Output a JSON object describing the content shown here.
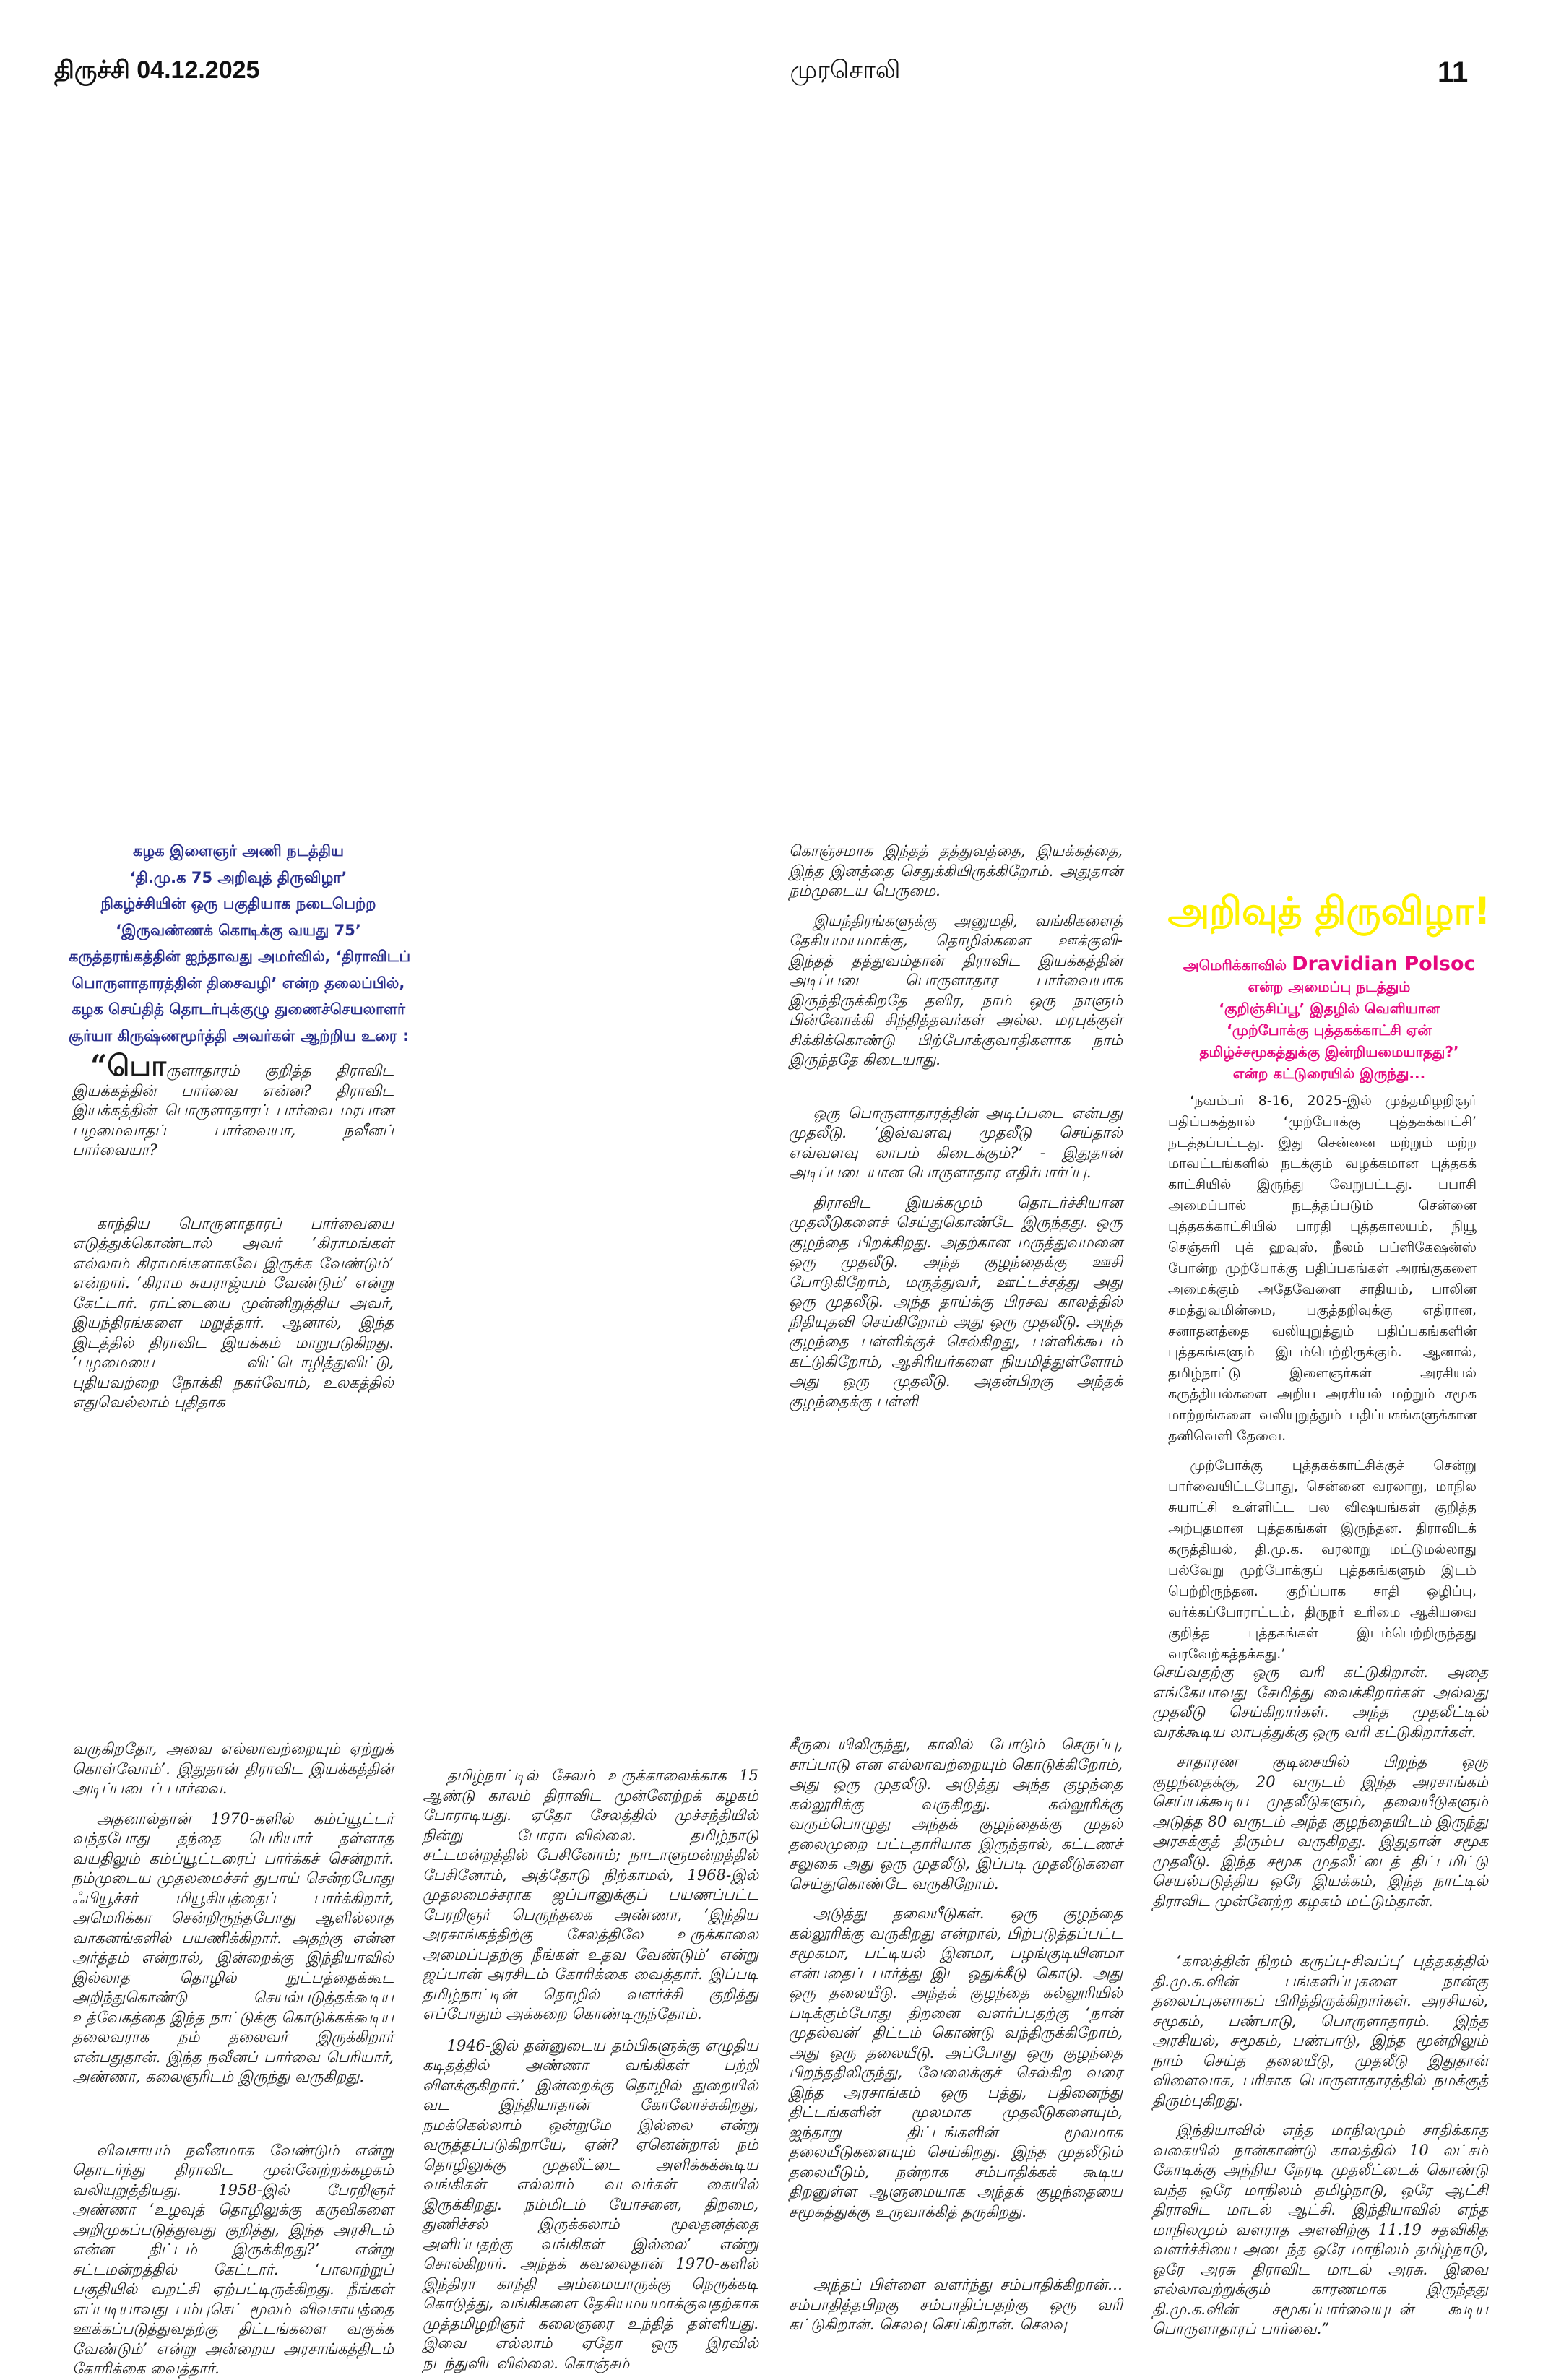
{
  "header": {
    "location_date": "திருச்சி 04.12.2025",
    "paper_name": "முரசொலி",
    "page_number": "11"
  },
  "intro": {
    "lines": [
      "கழக இளைஞர் அணி நடத்திய",
      "‘தி.மு.க 75 அறிவுத் திருவிழா’",
      "நிகழ்ச்சியின் ஒரு பகுதியாக நடைபெற்ற",
      "‘இருவண்ணக் கொடிக்கு வயது 75’",
      "கருத்தரங்கத்தின் ஐந்தாவது அமர்வில், ‘திராவிடப்",
      "பொருளாதாரத்தின் திசைவழி’ என்ற தலைப்பில்,",
      "கழக செய்தித் தொடர்புக்குழு துணைச்செயலாளர்",
      "சூர்யா கிருஷ்ணமூர்த்தி அவர்கள் ஆற்றிய உரை :"
    ]
  },
  "column1_top": {
    "drop_cap": "“பொ",
    "p1_rest": "ருளாதாரம் குறித்த திராவிட இயக்கத்தின் பார்வை என்ன? திராவிட இயக்கத்தின் பொருளாதாரப் பார்வை மரபான பழமைவாதப் பார்வையா, நவீனப் பார்வையா?",
    "p2": "காந்திய பொருளாதாரப் பார்வையை எடுத்துக்கொண்டால் அவர் ‘கிராமங்கள் எல்லாம் கிராமங்களாகவே இருக்க வேண்டும்’ என்றார். ‘கிராம சுயராஜ்யம் வேண்டும்’ என்று கேட்டார். ராட்டையை முன்னிறுத்திய அவர், இயந்திரங்களை மறுத்தார். ஆனால், இந்த இடத்தில் திராவிட இயக்கம் மாறுபடுகிறது. ‘பழமையை விட்டொழித்துவிட்டு, புதியவற்றை நோக்கி நகர்வோம், உலகத்தில் எதுவெல்லாம் புதிதாக"
  },
  "column3_top": {
    "paragraphs": [
      "கொஞ்சமாக இந்தத் தத்துவத்தை, இயக்கத்தை, இந்த இனத்தை செதுக்கியிருக்கிறோம். அதுதான் நம்முடைய பெருமை.",
      "இயந்திரங்களுக்கு அனுமதி, வங்கிகளைத் தேசியமயமாக்கு, தொழில்களை ஊக்குவி- இந்தத் தத்துவம்தான் திராவிட இயக்கத்தின் அடிப்படை பொருளாதார பார்வையாக இருந்திருக்கிறதே தவிர, நாம் ஒரு நாளும் பின்னோக்கி சிந்தித்தவர்கள் அல்ல. மரபுக்குள் சிக்கிக்கொண்டு பிற்போக்குவாதிகளாக நாம் இருந்ததே கிடையாது.",
      "ஒரு பொருளாதாரத்தின் அடிப்படை என்பது முதலீடு. ‘இவ்வளவு முதலீடு செய்தால் எவ்வளவு லாபம் கிடைக்கும்?’ - இதுதான் அடிப்படையான பொருளாதார எதிர்பார்ப்பு.",
      "திராவிட இயக்கமும் தொடர்ச்சியான முதலீடுகளைச் செய்துகொண்டே இருந்தது. ஒரு குழந்தை பிறக்கிறது. அதற்கான மருத்துவமனை ஒரு முதலீடு. அந்த குழந்தைக்கு ஊசி போடுகிறோம், மருத்துவர், ஊட்டச்சத்து அது ஒரு முதலீடு. அந்த தாய்க்கு பிரசவ காலத்தில் நிதியுதவி செய்கிறோம் அது ஒரு முதலீடு. அந்த குழந்தை பள்ளிக்குச் செல்கிறது, பள்ளிக்கூடம் கட்டுகிறோம், ஆசிரியர்களை நியமித்துள்ளோம் அது ஒரு முதலீடு. அதன்பிறகு அந்தக் குழந்தைக்கு பள்ளி"
    ]
  },
  "sidebar_box": {
    "title": "அறிவுத் திருவிழா!",
    "title_color": "#fff200",
    "subtitle_color": "#e5087f",
    "subtitle_prefix": "அமெரிக்காவில்",
    "subtitle_english": "Dravidian Polsoc",
    "subtitle_lines": [
      "என்ற அமைப்பு நடத்தும்",
      "‘குறிஞ்சிப்பூ’ இதழில் வெளியான",
      "‘முற்போக்கு புத்தகக்காட்சி ஏன்",
      "தமிழ்ச்சமூகத்துக்கு இன்றியமையாதது?’",
      "என்ற கட்டுரையில் இருந்து..."
    ],
    "paragraphs": [
      "‘நவம்பர் 8-16, 2025-இல் முத்தமிழறிஞர் பதிப்பகத்தால் ‘முற்போக்கு புத்தகக்காட்சி’ நடத்தப்பட்டது. இது சென்னை மற்றும் மற்ற மாவட்டங்களில் நடக்கும் வழக்கமான புத்தகக் காட்சியில் இருந்து வேறுபட்டது. பபாசி அமைப்பால் நடத்தப்படும் சென்னை புத்தகக்காட்சியில் பாரதி புத்தகாலயம், நியூ செஞ்சுரி புக் ஹவுஸ், நீலம் பப்ளிகேஷன்ஸ் போன்ற முற்போக்கு பதிப்பகங்கள் அரங்குகளை அமைக்கும் அதேவேளை சாதியம், பாலின சமத்துவமின்மை, பகுத்தறிவுக்கு எதிரான, சனாதனத்தை வலியுறுத்தும் பதிப்பகங்களின் புத்தகங்களும் இடம்பெற்றிருக்கும். ஆனால், தமிழ்நாட்டு இளைஞர்கள் அரசியல் கருத்தியல்களை அறிய அரசியல் மற்றும் சமூக மாற்றங்களை வலியுறுத்தும் பதிப்பகங்களுக்கான தனிவெளி தேவை.",
      "முற்போக்கு புத்தகக்காட்சிக்குச் சென்று பார்வையிட்டபோது, சென்னை வரலாறு, மாநில சுயாட்சி உள்ளிட்ட பல விஷயங்கள் குறித்த அற்புதமான புத்தகங்கள் இருந்தன. திராவிடக் கருத்தியல், தி.மு.க. வரலாறு மட்டுமல்லாது பல்வேறு முற்போக்குப் புத்தகங்களும் இடம் பெற்றிருந்தன. குறிப்பாக சாதி ஒழிப்பு, வர்க்கப்போராட்டம், திருநர் உரிமை ஆகியவை குறித்த புத்தகங்கள் இடம்பெற்றிருந்தது வரவேற்கத்தக்கது.’"
    ]
  },
  "column1_bottom": {
    "paragraphs": [
      "வருகிறதோ, அவை எல்லாவற்றையும் ஏற்றுக் கொள்வோம்’. இதுதான் திராவிட இயக்கத்தின் அடிப்படைப் பார்வை.",
      "அதனால்தான் 1970-களில் கம்ப்யூட்டர் வந்தபோது தந்தை பெரியார் தள்ளாத வயதிலும் கம்ப்யூட்டரைப் பார்க்கச் சென்றார். நம்முடைய முதலமைச்சர் துபாய் சென்றபோது ஃபியூச்சர் மியூசியத்தைப் பார்க்கிறார், அமெரிக்கா சென்றிருந்தபோது ஆளில்லாத வாகனங்களில் பயணிக்கிறார். அதற்கு என்ன அர்த்தம் என்றால், இன்றைக்கு இந்தியாவில் இல்லாத தொழில் நுட்பத்தைக்கூட அறிந்துகொண்டு செயல்படுத்தக்கூடிய உத்வேகத்தை இந்த நாட்டுக்கு கொடுக்கக்கூடிய தலைவராக நம் தலைவர் இருக்கிறார் என்பதுதான். இந்த நவீனப் பார்வை பெரியார், அண்ணா, கலைஞரிடம் இருந்து வருகிறது.",
      "விவசாயம் நவீனமாக வேண்டும் என்று தொடர்ந்து திராவிட முன்னேற்றக்கழகம் வலியுறுத்தியது. 1958-இல் பேரறிஞர் அண்ணா ‘உழவுத் தொழிலுக்கு கருவிகளை அறிமுகப்படுத்துவது குறித்து, இந்த அரசிடம் என்ன திட்டம் இருக்கிறது?’ என்று சட்டமன்றத்தில் கேட்டார். ‘பாலாற்றுப் பகுதியில் வறட்சி ஏற்பட்டிருக்கிறது. நீங்கள் எப்படியாவது பம்புசெட் மூலம் விவசாயத்தை ஊக்கப்படுத்துவதற்கு திட்டங்களை வகுக்க வேண்டும்’ என்று அன்றைய அரசாங்கத்திடம் கோரிக்கை வைத்தார்."
    ]
  },
  "column2_bottom": {
    "paragraphs": [
      "தமிழ்நாட்டில் சேலம் உருக்காலைக்காக 15 ஆண்டு காலம் திராவிட முன்னேற்றக் கழகம் போராடியது. ஏதோ சேலத்தில் முச்சந்தியில் நின்று போராடவில்லை. தமிழ்நாடு சட்டமன்றத்தில் பேசினோம்; நாடாளுமன்றத்தில் பேசினோம், அத்தோடு நிற்காமல், 1968-இல் முதலமைச்சராக ஜப்பானுக்குப் பயணப்பட்ட பேரறிஞர் பெருந்தகை அண்ணா, ‘இந்திய அரசாங்கத்திற்கு சேலத்திலே உருக்காலை அமைப்பதற்கு நீங்கள் உதவ வேண்டும்’ என்று ஜப்பான் அரசிடம் கோரிக்கை வைத்தார். இப்படி தமிழ்நாட்டின் தொழில் வளர்ச்சி குறித்து எப்போதும் அக்கறை கொண்டிருந்தோம்.",
      "1946-இல் தன்னுடைய தம்பிகளுக்கு எழுதிய கடிதத்தில் அண்ணா வங்கிகள் பற்றி விளக்குகிறார்.’ இன்றைக்கு தொழில் துறையில் வட இந்தியாதான் கோலோச்சுகிறது, நமக்கெல்லாம் ஒன்றுமே இல்லை என்று வருத்தப்படுகிறாயே, ஏன்? ஏனென்றால் நம் தொழிலுக்கு முதலீட்டை அளிக்கக்கூடிய வங்கிகள் எல்லாம் வடவர்கள் கையில் இருக்கிறது. நம்மிடம் யோசனை, திறமை, துணிச்சல் இருக்கலாம் மூலதனத்தை அளிப்பதற்கு வங்கிகள் இல்லை’ என்று சொல்கிறார். அந்தக் கவலைதான் 1970-களில் இந்திரா காந்தி அம்மையாருக்கு நெருக்கடி கொடுத்து, வங்கிகளை தேசியமயமாக்குவதற்காக முத்தமிழறிஞர் கலைஞரை உந்தித் தள்ளியது. இவை எல்லாம் ஏதோ ஒரு இரவில் நடந்துவிடவில்லை. கொஞ்சம்"
    ]
  },
  "column3_bottom": {
    "paragraphs": [
      "சீருடையிலிருந்து, காலில் போடும் செருப்பு, சாப்பாடு என எல்லாவற்றையும் கொடுக்கிறோம், அது ஒரு முதலீடு. அடுத்து அந்த குழந்தை கல்லூரிக்கு வருகிறது. கல்லூரிக்கு வரும்பொழுது அந்தக் குழந்தைக்கு முதல் தலைமுறை பட்டதாரியாக இருந்தால், கட்டணச் சலுகை அது ஒரு முதலீடு, இப்படி முதலீடுகளை செய்துகொண்டே வருகிறோம்.",
      "அடுத்து தலையீடுகள். ஒரு குழந்தை கல்லூரிக்கு வருகிறது என்றால், பிற்படுத்தப்பட்ட சமூகமா, பட்டியல் இனமா, பழங்குடியினமா என்பதைப் பார்த்து இட ஒதுக்கீடு கொடு. அது ஒரு தலையீடு. அந்தக் குழந்தை கல்லூரியில் படிக்கும்போது திறனை வளர்ப்பதற்கு ‘நான் முதல்வன்’ திட்டம் கொண்டு வந்திருக்கிறோம், அது ஒரு தலையீடு. அப்போது ஒரு குழந்தை பிறந்ததிலிருந்து, வேலைக்குச் செல்கிற வரை இந்த அரசாங்கம் ஒரு பத்து, பதினைந்து திட்டங்களின் மூலமாக முதலீடுகளையும், ஐந்தாறு திட்டங்களின் மூலமாக தலையீடுகளையும் செய்கிறது. இந்த முதலீடும் தலையீடும், நன்றாக சம்பாதிக்கக் கூடிய திறனுள்ள ஆளுமையாக அந்தக் குழந்தையை சமூகத்துக்கு உருவாக்கித் தருகிறது.",
      "அந்தப் பிள்ளை வளர்ந்து சம்பாதிக்கிறான்… சம்பாதித்தபிறகு சம்பாதிப்பதற்கு ஒரு வரி கட்டுகிறான். செலவு செய்கிறான். செலவு"
    ]
  },
  "column4_bottom": {
    "paragraphs": [
      "செய்வதற்கு ஒரு வரி கட்டுகிறான். அதை எங்கேயாவது சேமித்து வைக்கிறார்கள் அல்லது முதலீடு செய்கிறார்கள். அந்த முதலீட்டில் வரக்கூடிய லாபத்துக்கு ஒரு வரி கட்டுகிறார்கள்.",
      "சாதாரண குடிசையில் பிறந்த ஒரு குழந்தைக்கு, 20 வருடம் இந்த அரசாங்கம் செய்யக்கூடிய முதலீடுகளும், தலையீடுகளும் அடுத்த 80 வருடம் அந்த குழந்தையிடம் இருந்து அரசுக்குத் திரும்ப வருகிறது. இதுதான் சமூக முதலீடு. இந்த சமூக முதலீட்டைத் திட்டமிட்டு செயல்படுத்திய ஒரே இயக்கம், இந்த நாட்டில் திராவிட முன்னேற்ற கழகம் மட்டும்தான்.",
      "‘காலத்தின் நிறம் கருப்பு-சிவப்பு’ புத்தகத்தில் தி.மு.க.வின் பங்களிப்புகளை நான்கு தலைப்புகளாகப் பிரித்திருக்கிறார்கள். அரசியல், சமூகம், பண்பாடு, பொருளாதாரம். இந்த அரசியல், சமூகம், பண்பாடு, இந்த மூன்றிலும் நாம் செய்த தலையீடு, முதலீடு இதுதான் விளைவாக, பரிசாக பொருளாதாரத்தில் நமக்குத் திரும்புகிறது.",
      "இந்தியாவில் எந்த மாநிலமும் சாதிக்காத வகையில் நான்காண்டு காலத்தில் 10 லட்சம் கோடிக்கு அந்நிய நேரடி முதலீட்டைக் கொண்டு வந்த ஒரே மாநிலம் தமிழ்நாடு, ஒரே ஆட்சி திராவிட மாடல் ஆட்சி. இந்தியாவில் எந்த மாநிலமும் வளராத அளவிற்கு 11.19 சதவிகித வளர்ச்சியை அடைந்த ஒரே மாநிலம் தமிழ்நாடு, ஒரே அரசு திராவிட மாடல் அரசு. இவை எல்லாவற்றுக்கும் காரணமாக இருந்தது தி.மு.க.வின் சமூகப்பார்வையுடன் கூடிய பொருளாதாரப் பார்வை.”"
    ]
  }
}
